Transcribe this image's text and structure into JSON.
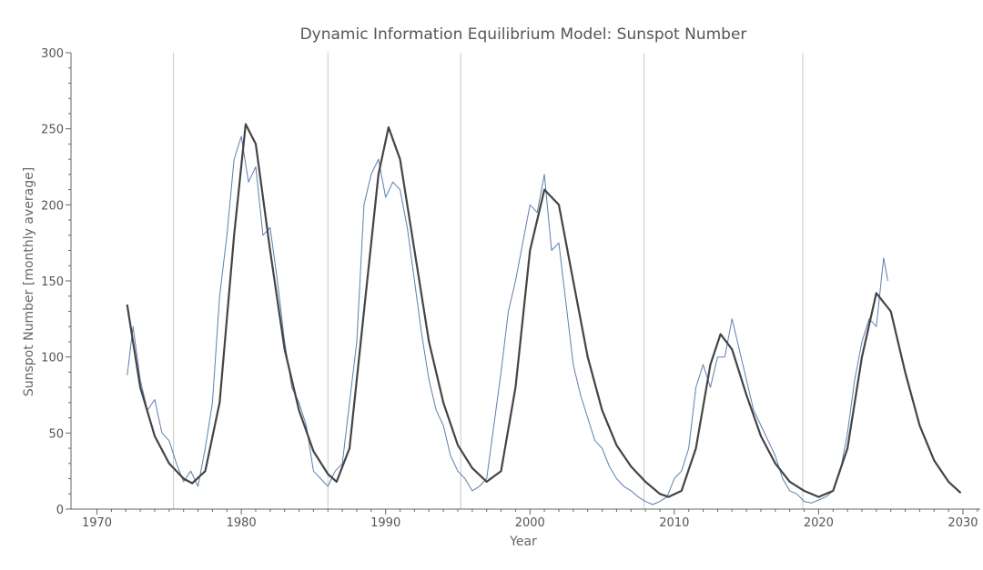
{
  "chart_data": {
    "type": "line",
    "title": "Dynamic Information Equilibrium Model: Sunspot Number",
    "xlabel": "Year",
    "ylabel": "Sunspot Number [monthly average]",
    "xlim": [
      1968.2,
      2031.2
    ],
    "ylim": [
      0,
      300
    ],
    "x_ticks": [
      1970,
      1980,
      1990,
      2000,
      2010,
      2020,
      2030
    ],
    "y_ticks": [
      0,
      50,
      100,
      150,
      200,
      250,
      300
    ],
    "grid": "vertical lines at model minima",
    "legend": "none",
    "vertical_lines": [
      1975.3,
      1986.0,
      1995.2,
      2007.9,
      2018.9
    ],
    "series": [
      {
        "role": "observed monthly data",
        "color": "#5B7FB0",
        "x": [
          1972.1,
          1972.5,
          1973.0,
          1973.5,
          1974.0,
          1974.5,
          1975.0,
          1975.5,
          1976.0,
          1976.5,
          1977.0,
          1977.5,
          1978.0,
          1978.5,
          1979.0,
          1979.5,
          1980.0,
          1980.5,
          1981.0,
          1981.5,
          1982.0,
          1982.5,
          1983.0,
          1983.5,
          1984.0,
          1984.5,
          1985.0,
          1985.5,
          1986.0,
          1986.5,
          1987.0,
          1987.5,
          1988.0,
          1988.5,
          1989.0,
          1989.5,
          1990.0,
          1990.5,
          1991.0,
          1991.5,
          1992.0,
          1992.5,
          1993.0,
          1993.5,
          1994.0,
          1994.5,
          1995.0,
          1995.5,
          1996.0,
          1996.5,
          1997.0,
          1997.5,
          1998.0,
          1998.5,
          1999.0,
          1999.5,
          2000.0,
          2000.5,
          2001.0,
          2001.5,
          2002.0,
          2002.5,
          2003.0,
          2003.5,
          2004.0,
          2004.5,
          2005.0,
          2005.5,
          2006.0,
          2006.5,
          2007.0,
          2007.5,
          2008.0,
          2008.5,
          2009.0,
          2009.5,
          2010.0,
          2010.5,
          2011.0,
          2011.5,
          2012.0,
          2012.5,
          2013.0,
          2013.5,
          2014.0,
          2014.5,
          2015.0,
          2015.5,
          2016.0,
          2016.5,
          2017.0,
          2017.5,
          2018.0,
          2018.5,
          2019.0,
          2019.5,
          2020.0,
          2020.5,
          2021.0,
          2021.5,
          2022.0,
          2022.5,
          2023.0,
          2023.5,
          2024.0,
          2024.5,
          2024.8
        ],
        "y": [
          88,
          120,
          85,
          65,
          72,
          50,
          45,
          30,
          18,
          25,
          15,
          40,
          70,
          140,
          180,
          230,
          245,
          215,
          225,
          180,
          185,
          150,
          110,
          80,
          70,
          55,
          25,
          20,
          15,
          25,
          30,
          70,
          110,
          200,
          220,
          230,
          205,
          215,
          210,
          185,
          150,
          115,
          85,
          65,
          55,
          35,
          25,
          20,
          12,
          15,
          20,
          55,
          90,
          130,
          150,
          175,
          200,
          195,
          220,
          170,
          175,
          135,
          95,
          75,
          60,
          45,
          40,
          28,
          20,
          15,
          12,
          8,
          5,
          3,
          5,
          8,
          20,
          25,
          40,
          80,
          95,
          80,
          100,
          100,
          125,
          105,
          85,
          65,
          55,
          45,
          35,
          20,
          12,
          10,
          5,
          4,
          6,
          8,
          12,
          25,
          50,
          85,
          110,
          125,
          120,
          165,
          150
        ]
      },
      {
        "role": "model fit",
        "color": "#444444",
        "x": [
          1972.1,
          1973.0,
          1974.0,
          1975.0,
          1976.0,
          1976.6,
          1977.5,
          1978.5,
          1979.5,
          1980.3,
          1981.0,
          1982.0,
          1983.0,
          1984.0,
          1985.0,
          1986.0,
          1986.6,
          1987.5,
          1988.5,
          1989.5,
          1990.2,
          1991.0,
          1992.0,
          1993.0,
          1994.0,
          1995.0,
          1996.0,
          1997.0,
          1998.0,
          1999.0,
          2000.0,
          2001.0,
          2002.0,
          2003.0,
          2004.0,
          2005.0,
          2006.0,
          2007.0,
          2008.0,
          2009.0,
          2009.6,
          2010.5,
          2011.5,
          2012.5,
          2013.2,
          2014.0,
          2015.0,
          2016.0,
          2017.0,
          2018.0,
          2019.0,
          2020.0,
          2021.0,
          2022.0,
          2023.0,
          2024.0,
          2025.0,
          2026.0,
          2027.0,
          2028.0,
          2029.0,
          2029.8
        ],
        "y": [
          134,
          80,
          48,
          30,
          20,
          17,
          25,
          70,
          180,
          253,
          240,
          170,
          105,
          65,
          38,
          23,
          18,
          40,
          130,
          220,
          251,
          230,
          170,
          110,
          70,
          42,
          27,
          18,
          25,
          80,
          170,
          210,
          200,
          150,
          100,
          65,
          42,
          28,
          18,
          10,
          8,
          12,
          40,
          95,
          115,
          105,
          75,
          48,
          30,
          18,
          12,
          8,
          12,
          40,
          100,
          142,
          130,
          90,
          55,
          32,
          18,
          11
        ]
      }
    ]
  }
}
